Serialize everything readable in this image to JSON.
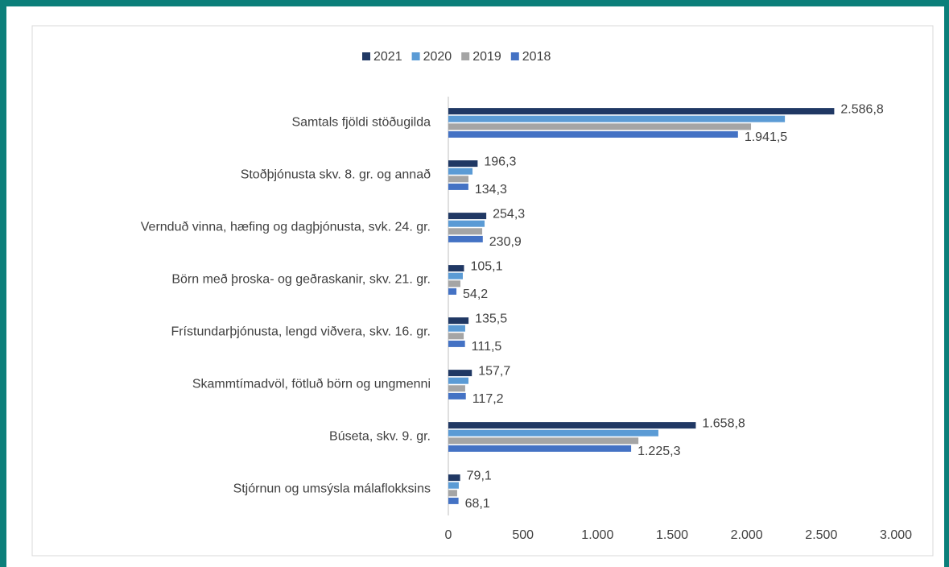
{
  "chart_data": {
    "type": "hbar",
    "categories": [
      "Samtals fjöldi stöðugilda",
      "Stoðþjónusta skv. 8. gr. og annað",
      "Vernduð vinna, hæfing og dagþjónusta, svk. 24. gr.",
      "Börn með þroska- og geðraskanir, skv. 21. gr.",
      "Frístundarþjónusta, lengd viðvera, skv. 16. gr.",
      "Skammtímadvöl, fötluð börn og ungmenni",
      "Búseta, skv. 9. gr.",
      "Stjórnun og umsýsla málaflokksins"
    ],
    "series": [
      {
        "name": "2021",
        "color": "#203864",
        "values": [
          2586.8,
          196.3,
          254.3,
          105.1,
          135.5,
          157.7,
          1658.8,
          79.1
        ],
        "value_labels": [
          "2.586,8",
          "196,3",
          "254,3",
          "105,1",
          "135,5",
          "157,7",
          "1.658,8",
          "79,1"
        ]
      },
      {
        "name": "2020",
        "color": "#5b9bd5",
        "values": [
          2256,
          162,
          243,
          97,
          113,
          135,
          1408,
          70
        ]
      },
      {
        "name": "2019",
        "color": "#a5a5a5",
        "values": [
          2029,
          135,
          227,
          81,
          103,
          113,
          1274,
          59
        ]
      },
      {
        "name": "2018",
        "color": "#4472c4",
        "values": [
          1941.5,
          134.3,
          230.9,
          54.2,
          111.5,
          117.2,
          1225.3,
          68.1
        ],
        "value_labels": [
          "1.941,5",
          "134,3",
          "230,9",
          "54,2",
          "111,5",
          "117,2",
          "1.225,3",
          "68,1"
        ]
      }
    ],
    "xlim": [
      0,
      3000
    ],
    "xticks": [
      0,
      500,
      {
        "value": 1000,
        "label": "1.000"
      },
      {
        "value": 1500,
        "label": "1.500"
      },
      {
        "value": 2000,
        "label": "2.000"
      },
      {
        "value": 2500,
        "label": "2.500"
      },
      {
        "value": 3000,
        "label": "3.000"
      }
    ],
    "legend": "top"
  }
}
